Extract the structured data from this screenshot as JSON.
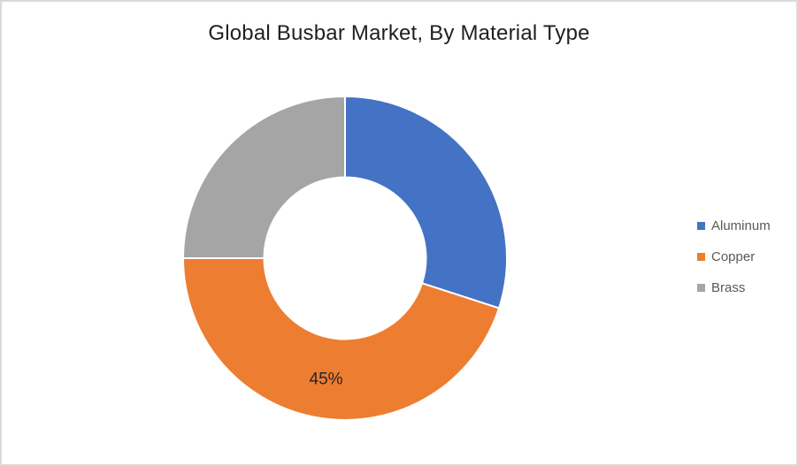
{
  "window": {
    "background": "#FFFFFF",
    "border_color": "#D9D9D9"
  },
  "chart_data": {
    "type": "donut",
    "title": "Global Busbar Market, By Material Type",
    "categories": [
      "Aluminum",
      "Copper",
      "Brass"
    ],
    "values": [
      30,
      45,
      25
    ],
    "unit": "%",
    "colors": [
      "#4472C4",
      "#ED7D31",
      "#A5A5A5"
    ],
    "data_labels": [
      "",
      "45%",
      ""
    ],
    "label_color": "#262626",
    "slice_border_color": "#FFFFFF",
    "start_angle_deg": 0,
    "direction": "clockwise",
    "inner_radius_ratio": 0.5,
    "legend_position": "right",
    "legend_text_color": "#595959"
  }
}
